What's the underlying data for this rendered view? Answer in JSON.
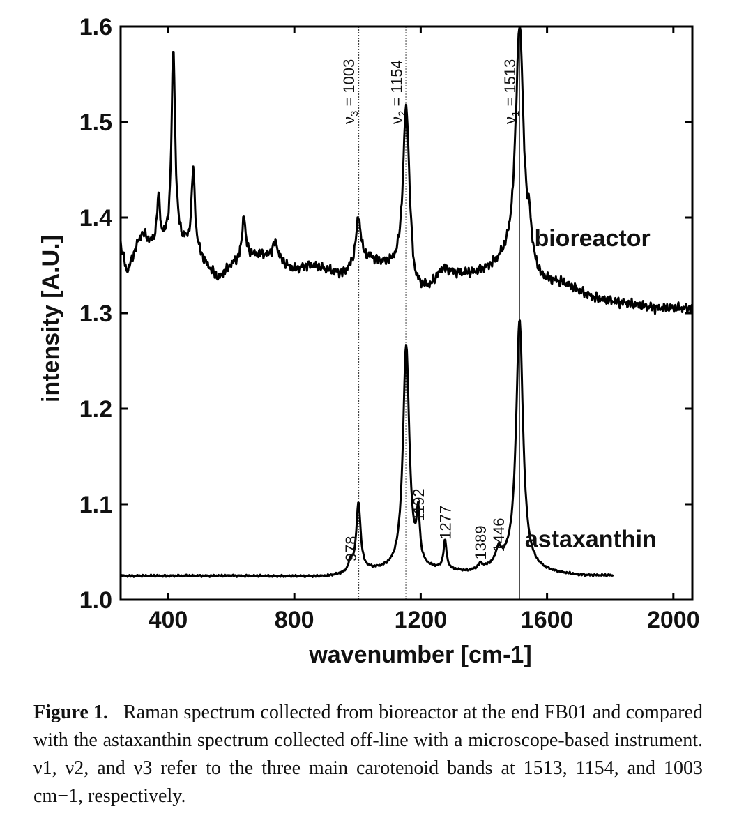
{
  "chart_data": {
    "type": "line",
    "xlabel": "wavenumber [cm-1]",
    "ylabel": "intensity [A.U.]",
    "xlim": [
      250,
      2060
    ],
    "ylim": [
      1.0,
      1.6
    ],
    "xticks": [
      400,
      800,
      1200,
      1600,
      2000
    ],
    "yticks": [
      1.0,
      1.1,
      1.2,
      1.3,
      1.4,
      1.5,
      1.6
    ],
    "xtick_labels": [
      "400",
      "800",
      "1200",
      "1600",
      "2000"
    ],
    "ytick_labels": [
      "1.0",
      "1.1",
      "1.2",
      "1.3",
      "1.4",
      "1.5",
      "1.6"
    ],
    "grid": false,
    "reference_lines": [
      {
        "x": 1003,
        "label_main": "ν",
        "label_sub": "3",
        "label_rest": " = 1003",
        "style": "dotted"
      },
      {
        "x": 1154,
        "label_main": "ν",
        "label_sub": "2",
        "label_rest": " = 1154",
        "style": "dotted"
      },
      {
        "x": 1513,
        "label_main": "ν",
        "label_sub": "1",
        "label_rest": " = 1513",
        "style": "solid"
      }
    ],
    "series": [
      {
        "name": "bioreactor",
        "baseline": [
          [
            250,
            1.37
          ],
          [
            270,
            1.34
          ],
          [
            300,
            1.36
          ],
          [
            350,
            1.365
          ],
          [
            400,
            1.37
          ],
          [
            480,
            1.37
          ],
          [
            520,
            1.35
          ],
          [
            560,
            1.335
          ],
          [
            600,
            1.35
          ],
          [
            650,
            1.36
          ],
          [
            700,
            1.36
          ],
          [
            760,
            1.35
          ],
          [
            800,
            1.345
          ],
          [
            850,
            1.35
          ],
          [
            900,
            1.345
          ],
          [
            950,
            1.34
          ],
          [
            980,
            1.345
          ],
          [
            1040,
            1.355
          ],
          [
            1080,
            1.35
          ],
          [
            1120,
            1.345
          ],
          [
            1160,
            1.345
          ],
          [
            1180,
            1.32
          ],
          [
            1230,
            1.325
          ],
          [
            1270,
            1.345
          ],
          [
            1320,
            1.34
          ],
          [
            1370,
            1.34
          ],
          [
            1420,
            1.345
          ],
          [
            1460,
            1.35
          ],
          [
            1520,
            1.35
          ],
          [
            1580,
            1.33
          ],
          [
            1650,
            1.33
          ],
          [
            1750,
            1.315
          ],
          [
            1850,
            1.31
          ],
          [
            1950,
            1.305
          ],
          [
            2060,
            1.305
          ]
        ],
        "peaks": [
          [
            320,
            0.02,
            20
          ],
          [
            370,
            0.05,
            6
          ],
          [
            417,
            0.205,
            7
          ],
          [
            480,
            0.08,
            6
          ],
          [
            640,
            0.045,
            6
          ],
          [
            740,
            0.02,
            12
          ],
          [
            1003,
            0.05,
            10
          ],
          [
            1154,
            0.17,
            12
          ],
          [
            1513,
            0.25,
            15
          ],
          [
            1545,
            0.03,
            6
          ]
        ],
        "label": "bioreactor",
        "label_x": 1560,
        "label_y": 1.37
      },
      {
        "name": "astaxanthin",
        "baseline": [
          [
            250,
            1.025
          ],
          [
            600,
            1.025
          ],
          [
            900,
            1.024
          ],
          [
            960,
            1.026
          ],
          [
            1000,
            1.03
          ],
          [
            1100,
            1.03
          ],
          [
            1160,
            1.03
          ],
          [
            1250,
            1.03
          ],
          [
            1350,
            1.028
          ],
          [
            1420,
            1.032
          ],
          [
            1470,
            1.035
          ],
          [
            1600,
            1.028
          ],
          [
            1700,
            1.025
          ],
          [
            1810,
            1.025
          ]
        ],
        "peaks": [
          [
            978,
            0.01,
            8
          ],
          [
            1003,
            0.07,
            8
          ],
          [
            1154,
            0.235,
            12
          ],
          [
            1192,
            0.05,
            6
          ],
          [
            1277,
            0.03,
            6
          ],
          [
            1389,
            0.005,
            8
          ],
          [
            1446,
            0.015,
            10
          ],
          [
            1513,
            0.26,
            13
          ]
        ],
        "x_end": 1810,
        "label": "astaxanthin",
        "label_x": 1530,
        "label_y": 1.055
      }
    ],
    "peak_labels": [
      {
        "text": "978",
        "x": 978,
        "y": 1.04
      },
      {
        "text": "1192",
        "x": 1192,
        "y": 1.082
      },
      {
        "text": "1277",
        "x": 1277,
        "y": 1.063
      },
      {
        "text": "1389",
        "x": 1389,
        "y": 1.042
      },
      {
        "text": "1446",
        "x": 1446,
        "y": 1.05
      }
    ]
  },
  "caption": {
    "label": "Figure 1.",
    "text": "Raman spectrum collected from bioreactor at the end FB01 and compared with the astaxanthin spectrum collected off-line with a microscope-based instrument. ν1, ν2, and ν3 refer to the three main carotenoid bands at 1513, 1154, and 1003 cm−1, respectively."
  }
}
